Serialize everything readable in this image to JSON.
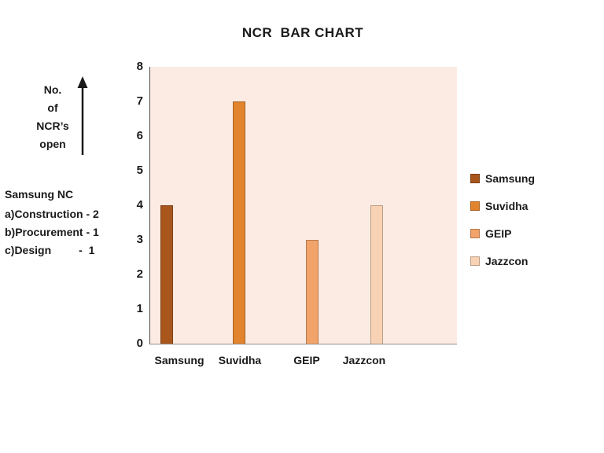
{
  "chart_data": {
    "type": "bar",
    "title": "NCR  BAR CHART",
    "categories": [
      "Samsung",
      "Suvidha",
      "GEIP",
      "Jazzcon"
    ],
    "values": [
      4,
      7,
      3,
      4
    ],
    "colors": [
      "#A9561D",
      "#E2832D",
      "#F2A369",
      "#F8D2B4"
    ],
    "ylim": [
      0,
      8
    ],
    "yticks": [
      0,
      1,
      2,
      3,
      4,
      5,
      6,
      7,
      8
    ],
    "xlabel": "",
    "ylabel": "No. of NCR's open",
    "legend": [
      {
        "label": "Samsung",
        "color": "#A9561D"
      },
      {
        "label": "Suvidha",
        "color": "#E2832D"
      },
      {
        "label": "GEIP",
        "color": "#F2A369"
      },
      {
        "label": "Jazzcon",
        "color": "#F8D2B4"
      }
    ],
    "legend_position": "right",
    "plot_background": "#FBEBE2",
    "grid": false
  },
  "ylabel_block": {
    "lines": [
      "No.",
      "of",
      "NCR’s",
      "open"
    ]
  },
  "annotation": {
    "title": "Samsung NC",
    "lines": [
      "a)Construction - 2",
      "b)Procurement - 1",
      "c)Design         -  1"
    ]
  }
}
